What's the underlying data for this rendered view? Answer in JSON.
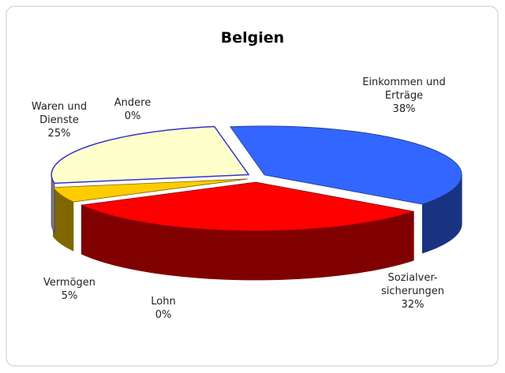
{
  "chart_data": {
    "type": "pie",
    "title": "Belgien",
    "categories": [
      "Einkommen und Erträge",
      "Sozialver-sicherungen",
      "Lohn",
      "Vermögen",
      "Waren und Dienste",
      "Andere"
    ],
    "values": [
      38,
      32,
      0,
      5,
      25,
      0
    ],
    "value_labels": [
      "38%",
      "32%",
      "0%",
      "5%",
      "25%",
      "0%"
    ],
    "colors": [
      "#3366ff",
      "#ff0000",
      "#669900",
      "#ffcc00",
      "#ffffcc",
      "#333399"
    ]
  }
}
